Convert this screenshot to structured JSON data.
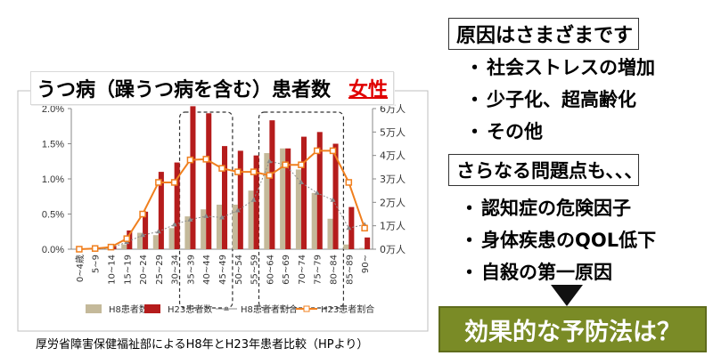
{
  "title": {
    "main": "うつ病（躁うつ病を含む）患者数",
    "sex": "女性"
  },
  "source": "厚労省障害保健福祉部によるH8年とH23年患者比較（HPより）",
  "causes": {
    "heading": "原因はさまざまです",
    "items": [
      "社会ストレスの増加",
      "少子化、超高齢化",
      "その他"
    ]
  },
  "problems": {
    "heading": "さらなる問題点も、、、",
    "items": [
      "認知症の危険因子",
      "身体疾患のQOL低下",
      "自殺の第一原因"
    ]
  },
  "bullet": "・",
  "conclusion": "効果的な予防法は？",
  "colors": {
    "h8_bar": "#c4b99a",
    "h23_bar": "#b51c1c",
    "h8_line": "#8a8a8a",
    "h23_line": "#f07f1e",
    "conclusion_bg": "#7a8b26"
  },
  "chart_data": {
    "type": "bar",
    "categories": [
      "0~4歳",
      "5~9",
      "10~14",
      "15~19",
      "20~24",
      "25~29",
      "30~34",
      "35~39",
      "40~44",
      "45~49",
      "50~54",
      "55~59",
      "60~64",
      "65~69",
      "70~74",
      "75~79",
      "80~84",
      "85~89",
      "90~"
    ],
    "series": [
      {
        "name": "H8患者数",
        "kind": "bar",
        "axis": "right",
        "values": [
          0,
          0,
          0.05,
          0.2,
          0.7,
          0.6,
          0.9,
          1.4,
          1.7,
          1.9,
          1.9,
          2.5,
          4.1,
          4.3,
          3.4,
          2.4,
          1.3,
          0.2,
          0.05
        ]
      },
      {
        "name": "H23患者数",
        "kind": "bar",
        "axis": "right",
        "values": [
          0.02,
          0.05,
          0.15,
          0.8,
          1.6,
          3.3,
          3.7,
          6.1,
          5.8,
          4.4,
          4.2,
          4.0,
          5.5,
          4.3,
          4.8,
          5.0,
          4.5,
          1.8,
          0.5
        ]
      },
      {
        "name": "H8患者者割合",
        "kind": "line",
        "axis": "left",
        "values": [
          0.0,
          0.0,
          0.02,
          0.1,
          0.2,
          0.25,
          0.35,
          0.42,
          0.47,
          0.45,
          0.55,
          0.7,
          1.25,
          1.2,
          0.95,
          0.8,
          0.7,
          0.3,
          0.35
        ]
      },
      {
        "name": "H23患者割合",
        "kind": "line",
        "axis": "left",
        "values": [
          0.0,
          0.01,
          0.03,
          0.15,
          0.5,
          0.95,
          0.95,
          1.27,
          1.28,
          1.15,
          1.1,
          1.1,
          1.05,
          1.2,
          1.2,
          1.4,
          1.4,
          0.95,
          0.3
        ]
      }
    ],
    "y_left": {
      "ticks": [
        "0.0%",
        "0.5%",
        "1.0%",
        "1.5%",
        "2.0%"
      ],
      "min": 0,
      "max": 2.0
    },
    "y_right": {
      "ticks": [
        "0万人",
        "1万人",
        "2万人",
        "3万人",
        "4万人",
        "5万人",
        "6万人"
      ],
      "min": 0,
      "max": 6
    },
    "highlight_groups": [
      [
        7,
        9
      ],
      [
        12,
        16
      ]
    ],
    "grid": false,
    "legend_position": "bottom"
  }
}
